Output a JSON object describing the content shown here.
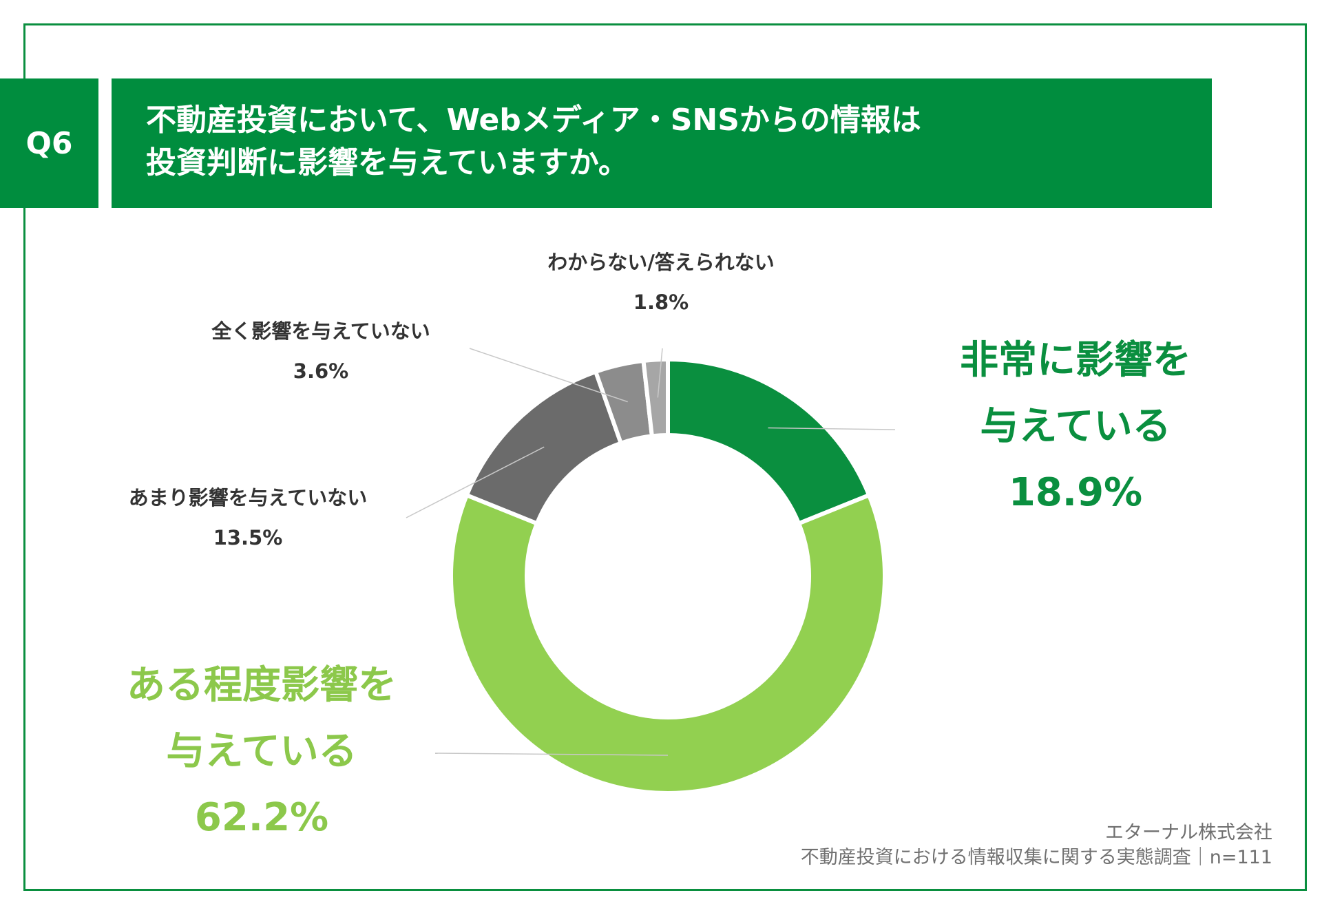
{
  "question": {
    "badge": "Q6",
    "title_line1": "不動産投資において、Webメディア・SNSからの情報は",
    "title_line2": "投資判断に影響を与えていますか。"
  },
  "colors": {
    "frame": "#0a8f3f",
    "title_bg": "#008d3e",
    "slice_strong": "#0a8f3f",
    "slice_moderate": "#92d050",
    "slice_little": "#6b6b6b",
    "slice_none": "#8c8c8c",
    "slice_unknown": "#a6a6a6"
  },
  "chart_data": {
    "type": "pie",
    "variant": "donut",
    "title": "不動産投資において、Webメディア・SNSからの情報は投資判断に影響を与えていますか。",
    "unit": "%",
    "slices": [
      {
        "key": "strong",
        "label_line1": "非常に影響を",
        "label_line2": "与えている",
        "value": 18.9,
        "value_label": "18.9%",
        "color": "#0a8f3f"
      },
      {
        "key": "moderate",
        "label_line1": "ある程度影響を",
        "label_line2": "与えている",
        "value": 62.2,
        "value_label": "62.2%",
        "color": "#92d050"
      },
      {
        "key": "little",
        "label_line1": "あまり影響を与えていない",
        "value": 13.5,
        "value_label": "13.5%",
        "color": "#6b6b6b"
      },
      {
        "key": "none",
        "label_line1": "全く影響を与えていない",
        "value": 3.6,
        "value_label": "3.6%",
        "color": "#8c8c8c"
      },
      {
        "key": "unknown",
        "label_line1": "わからない/答えられない",
        "value": 1.8,
        "value_label": "1.8%",
        "color": "#a6a6a6"
      }
    ]
  },
  "footer": {
    "company": "エターナル株式会社",
    "survey": "不動産投資における情報収集に関する実態調査｜n=111"
  }
}
